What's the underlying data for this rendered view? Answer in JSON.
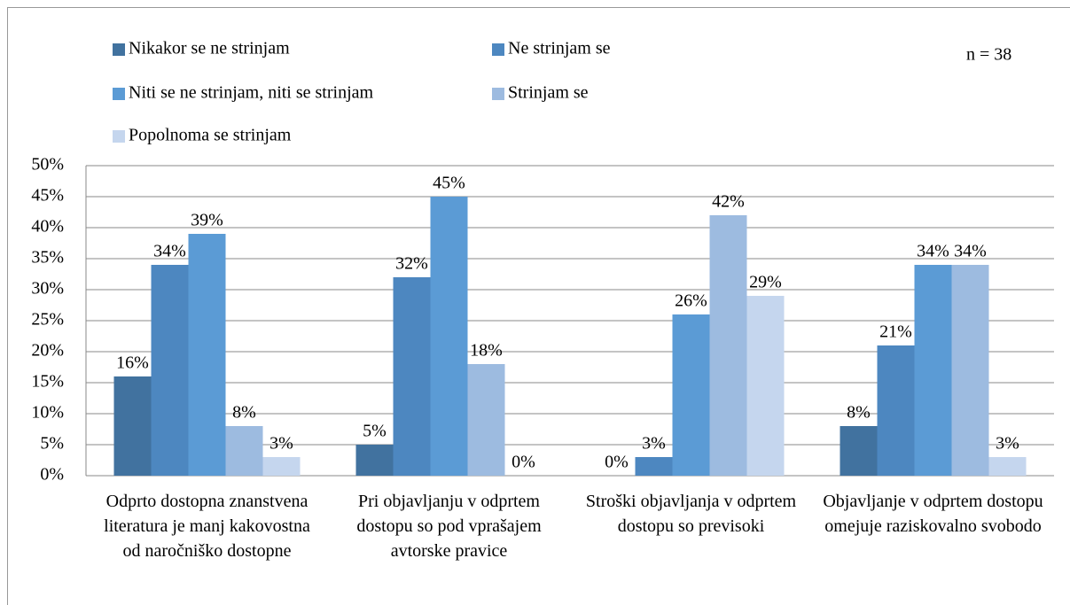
{
  "chart_data": {
    "type": "bar",
    "annotation": "n = 38",
    "categories": [
      "Odprto dostopna znanstvena literatura je manj kakovostna od naročniško dostopne",
      "Pri objavljanju v odprtem dostopu so pod vprašajem avtorske pravice",
      "Stroški objavljanja v odprtem dostopu so previsoki",
      "Objavljanje v odprtem dostopu omejuje raziskovalno svobodo"
    ],
    "series": [
      {
        "name": "Nikakor se ne strinjam",
        "color": "#41729f",
        "values": [
          16,
          5,
          0,
          8
        ],
        "value_labels": [
          "16%",
          "5%",
          "0%",
          "8%"
        ]
      },
      {
        "name": "Ne strinjam se",
        "color": "#4d87c0",
        "values": [
          34,
          32,
          3,
          21
        ],
        "value_labels": [
          "34%",
          "32%",
          "3%",
          "21%"
        ]
      },
      {
        "name": "Niti se ne strinjam, niti se strinjam",
        "color": "#5b9bd5",
        "values": [
          39,
          45,
          26,
          34
        ],
        "value_labels": [
          "39%",
          "45%",
          "26%",
          "34%"
        ]
      },
      {
        "name": "Strinjam se",
        "color": "#9dbbe0",
        "values": [
          8,
          18,
          42,
          34
        ],
        "value_labels": [
          "8%",
          "18%",
          "42%",
          "34%"
        ]
      },
      {
        "name": "Popolnoma se strinjam",
        "color": "#c5d6ee",
        "values": [
          3,
          0,
          29,
          3
        ],
        "value_labels": [
          "3%",
          "0%",
          "29%",
          "3%"
        ]
      }
    ],
    "ylim": [
      0,
      50
    ],
    "yticks": [
      {
        "value": 0,
        "label": "0%"
      },
      {
        "value": 5,
        "label": "5%"
      },
      {
        "value": 10,
        "label": "10%"
      },
      {
        "value": 15,
        "label": "15%"
      },
      {
        "value": 20,
        "label": "20%"
      },
      {
        "value": 25,
        "label": "25%"
      },
      {
        "value": 30,
        "label": "30%"
      },
      {
        "value": 35,
        "label": "35%"
      },
      {
        "value": 40,
        "label": "40%"
      },
      {
        "value": 45,
        "label": "45%"
      },
      {
        "value": 50,
        "label": "50%"
      }
    ],
    "grid": true
  }
}
